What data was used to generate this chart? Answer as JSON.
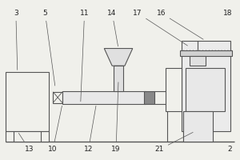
{
  "bg_color": "#f0f0eb",
  "lc": "#555555",
  "lw": 0.8,
  "label_fs": 6.5,
  "label_color": "#222222"
}
